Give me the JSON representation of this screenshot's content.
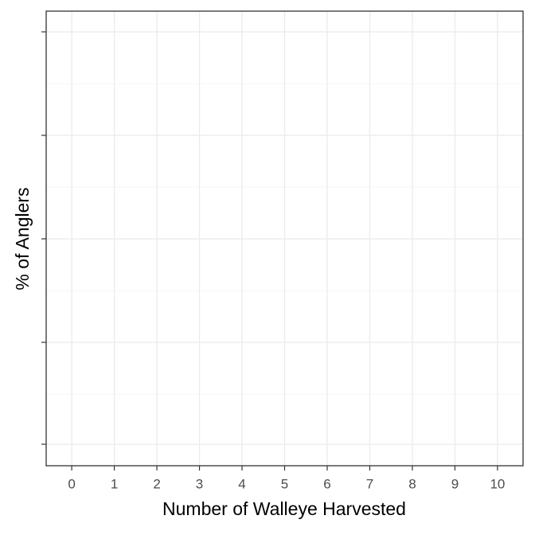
{
  "chart_data": {
    "type": "bar",
    "xlabel": "Number of Walleye Harvested",
    "ylabel": "% of Anglers",
    "xlim": [
      -0.6,
      10.6
    ],
    "xticks": [
      0,
      1,
      2,
      3,
      4,
      5,
      6,
      7,
      8,
      9,
      10
    ],
    "grid": true
  }
}
